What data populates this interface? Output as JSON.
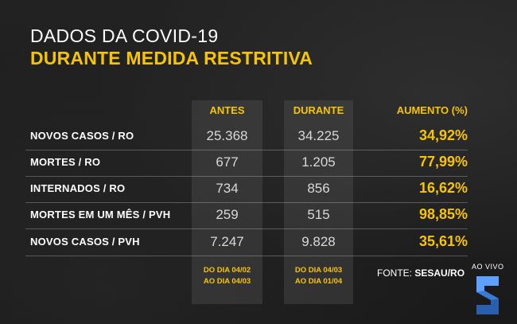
{
  "header": {
    "title": "DADOS DA COVID-19",
    "subtitle": "DURANTE MEDIDA RESTRITIVA"
  },
  "columns": {
    "before": "ANTES",
    "during": "DURANTE",
    "increase": "AUMENTO (%)"
  },
  "rows": [
    {
      "label": "NOVOS CASOS / RO",
      "before": "25.368",
      "during": "34.225",
      "increase": "34,92%"
    },
    {
      "label": "MORTES / RO",
      "before": "677",
      "during": "1.205",
      "increase": "77,99%"
    },
    {
      "label": "INTERNADOS / RO",
      "before": "734",
      "during": "856",
      "increase": "16,62%"
    },
    {
      "label": "MORTES EM UM MÊS / PVH",
      "before": "259",
      "during": "515",
      "increase": "98,85%"
    },
    {
      "label": "NOVOS CASOS / PVH",
      "before": "7.247",
      "during": "9.828",
      "increase": "35,61%"
    }
  ],
  "periods": {
    "before_line1": "DO DIA 04/02",
    "before_line2": "AO DIA 04/03",
    "during_line1": "DO DIA 04/03",
    "during_line2": "AO DIA 01/04"
  },
  "source": {
    "prefix": "FONTE: ",
    "name": "SESAU/RO"
  },
  "live_label": "AO VIVO",
  "colors": {
    "accent": "#f7c400",
    "text": "#ffffff",
    "background": "#1c1c1c"
  },
  "icons": {
    "logo": "s-channel-logo-icon"
  }
}
